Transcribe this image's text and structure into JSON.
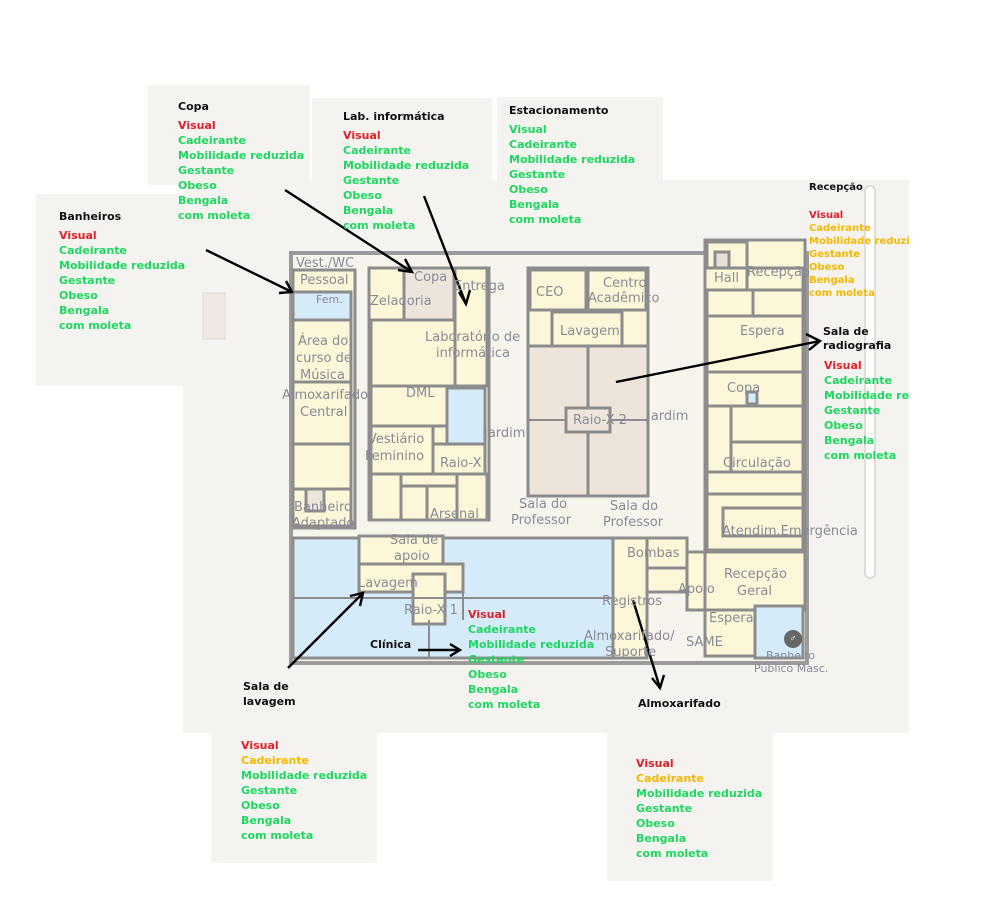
{
  "rooms": {
    "vest_wc": "Vest./WC",
    "pessoal": "Pessoal",
    "fem": "Fem.",
    "zeladoria": "Zeladoria",
    "copa_top": "Copa",
    "entrega": "Entrega",
    "ceo": "CEO",
    "centro": "Centro",
    "academico": "Acadêmico",
    "hall": "Hall",
    "recepcao_top": "Recepção",
    "lavagem_center": "Lavagem",
    "lab_1": "Laboratório de",
    "lab_2": "informática",
    "espera_top": "Espera",
    "area_1": "Área do",
    "area_2": "curso de",
    "area_3": "Música",
    "almox_1": "Almoxarifado",
    "almox_2": "Central",
    "dml": "DML",
    "copa_right": "Copa",
    "jardim_left": "Jardim",
    "raiox2": "Raio-X 2",
    "jardim_right": "Jardim",
    "vest_1": "Vestiário",
    "vest_2": "Feminino",
    "raiox": "Raio-X",
    "circulacao": "Circulação",
    "banheiro_1": "Banheiro",
    "banheiro_2": "Adaptado",
    "arsenal": "Arsenal",
    "sala_prof_a1": "Sala do",
    "sala_prof_a2": "Professor",
    "sala_prof_b1": "Sala do",
    "sala_prof_b2": "Professor",
    "atendim": "Atendim.Emergência",
    "sala_apoio_1": "Sala de",
    "sala_apoio_2": "apoio",
    "bombas": "Bombas",
    "lavagem_low": "Lavagem",
    "apoio": "Apoio",
    "recepcao_geral_1": "Recepção",
    "recepcao_geral_2": "Geral",
    "registros": "Registros",
    "raiox1": "Raio-X 1",
    "espera_low": "Espera",
    "almox_sup_1": "Almoxarifado/",
    "almox_sup_2": "Suporte",
    "same": "SAME",
    "banheiro_pub_1": "Banheiro",
    "banheiro_pub_2": "Público Masc."
  },
  "cards": {
    "copa": {
      "title": "Copa",
      "items": [
        "Visual",
        "Cadeirante",
        "Mobilidade reduzida",
        "Gestante",
        "Obeso",
        "Bengala",
        "com moleta"
      ]
    },
    "lab": {
      "title": "Lab. informática",
      "items": [
        "Visual",
        "Cadeirante",
        "Mobilidade reduzida",
        "Gestante",
        "Obeso",
        "Bengala",
        "com moleta"
      ]
    },
    "estacionamento": {
      "title": "Estacionamento",
      "items": [
        "Visual",
        "Cadeirante",
        "Mobilidade reduzida",
        "Gestante",
        "Obeso",
        "Bengala",
        "com moleta"
      ]
    },
    "banheiros": {
      "title": "Banheiros",
      "items": [
        "Visual",
        "Cadeirante",
        "Mobilidade reduzida",
        "Gestante",
        "Obeso",
        "Bengala",
        "com moleta"
      ]
    },
    "recepcao": {
      "title": "Recepção",
      "items": [
        "Visual",
        "Cadeirante",
        "Mobilidade reduzida",
        "Gestante",
        "Obeso",
        "Bengala",
        "com moleta"
      ]
    },
    "radiografia": {
      "title_1": "Sala de",
      "title_2": "radiografia",
      "items": [
        "Visual",
        "Cadeirante",
        "Mobilidade reduzida",
        "Gestante",
        "Obeso",
        "Bengala",
        "com moleta"
      ]
    },
    "clinica": {
      "title": "Clínica",
      "items": [
        "Visual",
        "Cadeirante",
        "Mobilidade reduzida",
        "Gestante",
        "Obeso",
        "Bengala",
        "com moleta"
      ]
    },
    "lavagem": {
      "title_1": "Sala de",
      "title_2": "lavagem",
      "items": [
        "Visual",
        "Cadeirante",
        "Mobilidade reduzida",
        "Gestante",
        "Obeso",
        "Bengala",
        "com moleta"
      ]
    },
    "almoxarifado": {
      "title": "Almoxarifado",
      "items": [
        "Visual",
        "Cadeirante",
        "Mobilidade reduzida",
        "Gestante",
        "Obeso",
        "Bengala",
        "com moleta"
      ]
    }
  },
  "colors": {
    "accessible": "#1ed760",
    "not_accessible": "#e0202a",
    "partial": "#f5b800",
    "room_fill": "#fbf7d8",
    "blue_fill": "#d6ebfa",
    "wall": "#8c8c8c",
    "courtyard": "#ede4dc"
  }
}
